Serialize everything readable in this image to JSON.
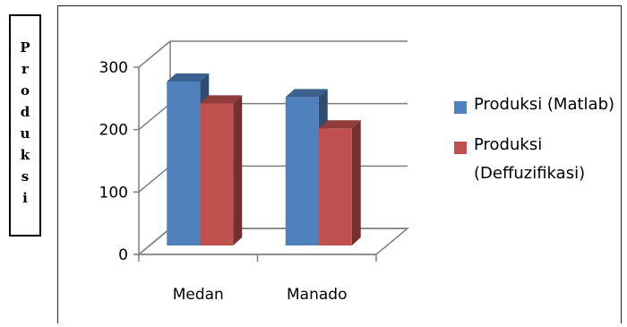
{
  "chart_data": {
    "type": "bar",
    "categories": [
      "Medan",
      "Manado"
    ],
    "series": [
      {
        "name": "Produksi (Matlab)",
        "values": [
          290,
          265
        ],
        "color": "#4f81bd"
      },
      {
        "name": "Produksi (Deffuzifikasi)",
        "values": [
          255,
          215
        ],
        "color": "#c0504d"
      }
    ],
    "yticks": [
      "0",
      "100",
      "200",
      "300"
    ],
    "ylim": [
      0,
      300
    ],
    "ylabel": "Produksi",
    "legend_position": "right",
    "grid": true,
    "style": "3d-column"
  }
}
